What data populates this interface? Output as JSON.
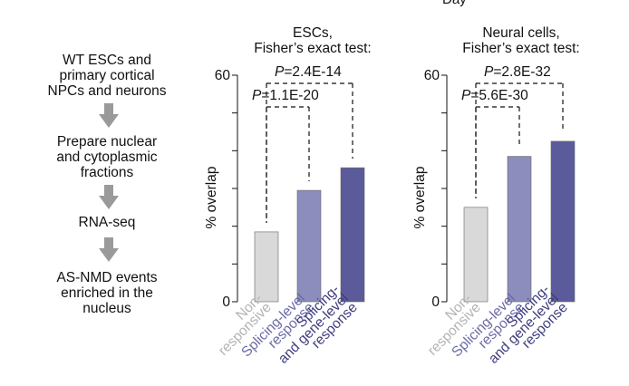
{
  "header_cut": "Day",
  "flow": {
    "steps": [
      "WT ESCs and\nprimary cortical\nNPCs and neurons",
      "Prepare nuclear\nand cytoplasmic\nfractions",
      "RNA-seq",
      "AS-NMD events\nenriched in the\nnucleus"
    ],
    "arrow_color": "#9a9a9a"
  },
  "chart_data": [
    {
      "type": "bar",
      "title": "ESCs,\nFisher’s exact test:",
      "ylabel": "% overlap",
      "ylim": [
        0,
        60
      ],
      "yticks": [
        0,
        60
      ],
      "categories": [
        "Non-\nresponsive",
        "Splicing-level\nresponse",
        "Splicing-\nand gene-level\nresponse"
      ],
      "values": [
        18.5,
        29.5,
        35.5
      ],
      "colors": [
        "#d9d9d9",
        "#8c8cbd",
        "#5b5b9b"
      ],
      "label_colors": [
        "#b3b3b3",
        "#6a6aa6",
        "#3e3e7e"
      ],
      "comparisons": [
        {
          "from": 0,
          "to": 1,
          "p_prefix": "P",
          "p_value": "=1.1E-20"
        },
        {
          "from": 0,
          "to": 2,
          "p_prefix": "P",
          "p_value": "=2.4E-14"
        }
      ]
    },
    {
      "type": "bar",
      "title": "Neural cells,\nFisher’s exact test:",
      "ylabel": "% overlap",
      "ylim": [
        0,
        60
      ],
      "yticks": [
        0,
        60
      ],
      "categories": [
        "Non-\nresponsive",
        "Splicing-level\nresponse",
        "Splicing-\nand gene-level\nresponse"
      ],
      "values": [
        25.0,
        38.5,
        42.5
      ],
      "colors": [
        "#d9d9d9",
        "#8c8cbd",
        "#5b5b9b"
      ],
      "label_colors": [
        "#b3b3b3",
        "#6a6aa6",
        "#3e3e7e"
      ],
      "comparisons": [
        {
          "from": 0,
          "to": 1,
          "p_prefix": "P",
          "p_value": "=5.6E-30"
        },
        {
          "from": 0,
          "to": 2,
          "p_prefix": "P",
          "p_value": "=2.8E-32"
        }
      ]
    }
  ]
}
